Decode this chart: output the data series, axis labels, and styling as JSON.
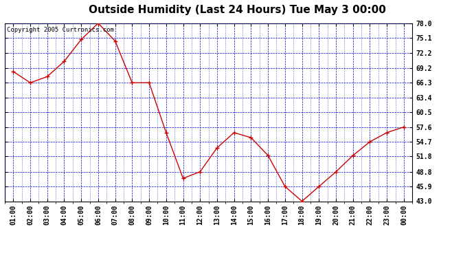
{
  "title": "Outside Humidity (Last 24 Hours) Tue May 3 00:00",
  "copyright": "Copyright 2005 Curtronics.com",
  "x_labels": [
    "01:00",
    "02:00",
    "03:00",
    "04:00",
    "05:00",
    "06:00",
    "07:00",
    "08:00",
    "09:00",
    "10:00",
    "11:00",
    "12:00",
    "13:00",
    "14:00",
    "15:00",
    "16:00",
    "17:00",
    "18:00",
    "19:00",
    "20:00",
    "21:00",
    "22:00",
    "23:00",
    "00:00"
  ],
  "y_values": [
    68.5,
    66.3,
    67.5,
    70.5,
    74.8,
    78.0,
    74.5,
    66.3,
    66.3,
    56.5,
    47.5,
    48.8,
    53.5,
    56.5,
    55.5,
    52.0,
    45.9,
    43.0,
    45.9,
    48.8,
    52.0,
    54.7,
    56.5,
    57.6
  ],
  "line_color": "#cc0000",
  "marker_color": "#cc0000",
  "fig_bg_color": "#ffffff",
  "plot_bg_color": "#ffffff",
  "grid_color": "#0000cc",
  "title_color": "#000000",
  "ytick_values": [
    43.0,
    45.9,
    48.8,
    51.8,
    54.7,
    57.6,
    60.5,
    63.4,
    66.3,
    69.2,
    72.2,
    75.1,
    78.0
  ],
  "ylim_min": 43.0,
  "ylim_max": 78.0,
  "title_fontsize": 11,
  "axis_fontsize": 7,
  "copyright_fontsize": 6.5
}
